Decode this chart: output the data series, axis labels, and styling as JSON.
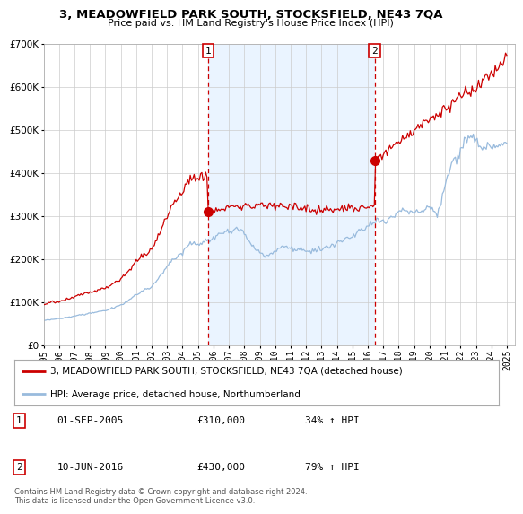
{
  "title": "3, MEADOWFIELD PARK SOUTH, STOCKSFIELD, NE43 7QA",
  "subtitle": "Price paid vs. HM Land Registry's House Price Index (HPI)",
  "legend_line1": "3, MEADOWFIELD PARK SOUTH, STOCKSFIELD, NE43 7QA (detached house)",
  "legend_line2": "HPI: Average price, detached house, Northumberland",
  "sale1_date": "01-SEP-2005",
  "sale1_price": "£310,000",
  "sale1_hpi": "34% ↑ HPI",
  "sale1_year": 2005.67,
  "sale1_value": 310000,
  "sale2_date": "10-JUN-2016",
  "sale2_price": "£430,000",
  "sale2_hpi": "79% ↑ HPI",
  "sale2_year": 2016.44,
  "sale2_value": 430000,
  "red_line_color": "#cc0000",
  "blue_line_color": "#99bbdd",
  "shade_color": "#ddeeff",
  "marker_box_color": "#cc0000",
  "grid_color": "#cccccc",
  "background_color": "#ffffff",
  "ylim": [
    0,
    700000
  ],
  "xlim": [
    1995,
    2025.5
  ],
  "footer": "Contains HM Land Registry data © Crown copyright and database right 2024.\nThis data is licensed under the Open Government Licence v3.0.",
  "hpi_x": [
    1995.0,
    1995.08,
    1995.17,
    1995.25,
    1995.33,
    1995.42,
    1995.5,
    1995.58,
    1995.67,
    1995.75,
    1995.83,
    1995.92,
    1996.0,
    1996.08,
    1996.17,
    1996.25,
    1996.33,
    1996.42,
    1996.5,
    1996.58,
    1996.67,
    1996.75,
    1996.83,
    1996.92,
    1997.0,
    1997.08,
    1997.17,
    1997.25,
    1997.33,
    1997.42,
    1997.5,
    1997.58,
    1997.67,
    1997.75,
    1997.83,
    1997.92,
    1998.0,
    1998.08,
    1998.17,
    1998.25,
    1998.33,
    1998.42,
    1998.5,
    1998.58,
    1998.67,
    1998.75,
    1998.83,
    1998.92,
    1999.0,
    1999.08,
    1999.17,
    1999.25,
    1999.33,
    1999.42,
    1999.5,
    1999.58,
    1999.67,
    1999.75,
    1999.83,
    1999.92,
    2000.0,
    2000.08,
    2000.17,
    2000.25,
    2000.33,
    2000.42,
    2000.5,
    2000.58,
    2000.67,
    2000.75,
    2000.83,
    2000.92,
    2001.0,
    2001.08,
    2001.17,
    2001.25,
    2001.33,
    2001.42,
    2001.5,
    2001.58,
    2001.67,
    2001.75,
    2001.83,
    2001.92,
    2002.0,
    2002.08,
    2002.17,
    2002.25,
    2002.33,
    2002.42,
    2002.5,
    2002.58,
    2002.67,
    2002.75,
    2002.83,
    2002.92,
    2003.0,
    2003.08,
    2003.17,
    2003.25,
    2003.33,
    2003.42,
    2003.5,
    2003.58,
    2003.67,
    2003.75,
    2003.83,
    2003.92,
    2004.0,
    2004.08,
    2004.17,
    2004.25,
    2004.33,
    2004.42,
    2004.5,
    2004.58,
    2004.67,
    2004.75,
    2004.83,
    2004.92,
    2005.0,
    2005.08,
    2005.17,
    2005.25,
    2005.33,
    2005.42,
    2005.5,
    2005.58,
    2005.67,
    2005.75,
    2005.83,
    2005.92,
    2006.0,
    2006.08,
    2006.17,
    2006.25,
    2006.33,
    2006.42,
    2006.5,
    2006.58,
    2006.67,
    2006.75,
    2006.83,
    2006.92,
    2007.0,
    2007.08,
    2007.17,
    2007.25,
    2007.33,
    2007.42,
    2007.5,
    2007.58,
    2007.67,
    2007.75,
    2007.83,
    2007.92,
    2008.0,
    2008.08,
    2008.17,
    2008.25,
    2008.33,
    2008.42,
    2008.5,
    2008.58,
    2008.67,
    2008.75,
    2008.83,
    2008.92,
    2009.0,
    2009.08,
    2009.17,
    2009.25,
    2009.33,
    2009.42,
    2009.5,
    2009.58,
    2009.67,
    2009.75,
    2009.83,
    2009.92,
    2010.0,
    2010.08,
    2010.17,
    2010.25,
    2010.33,
    2010.42,
    2010.5,
    2010.58,
    2010.67,
    2010.75,
    2010.83,
    2010.92,
    2011.0,
    2011.08,
    2011.17,
    2011.25,
    2011.33,
    2011.42,
    2011.5,
    2011.58,
    2011.67,
    2011.75,
    2011.83,
    2011.92,
    2012.0,
    2012.08,
    2012.17,
    2012.25,
    2012.33,
    2012.42,
    2012.5,
    2012.58,
    2012.67,
    2012.75,
    2012.83,
    2012.92,
    2013.0,
    2013.08,
    2013.17,
    2013.25,
    2013.33,
    2013.42,
    2013.5,
    2013.58,
    2013.67,
    2013.75,
    2013.83,
    2013.92,
    2014.0,
    2014.08,
    2014.17,
    2014.25,
    2014.33,
    2014.42,
    2014.5,
    2014.58,
    2014.67,
    2014.75,
    2014.83,
    2014.92,
    2015.0,
    2015.08,
    2015.17,
    2015.25,
    2015.33,
    2015.42,
    2015.5,
    2015.58,
    2015.67,
    2015.75,
    2015.83,
    2015.92,
    2016.0,
    2016.08,
    2016.17,
    2016.25,
    2016.33,
    2016.42,
    2016.5,
    2016.58,
    2016.67,
    2016.75,
    2016.83,
    2016.92,
    2017.0,
    2017.08,
    2017.17,
    2017.25,
    2017.33,
    2017.42,
    2017.5,
    2017.58,
    2017.67,
    2017.75,
    2017.83,
    2017.92,
    2018.0,
    2018.08,
    2018.17,
    2018.25,
    2018.33,
    2018.42,
    2018.5,
    2018.58,
    2018.67,
    2018.75,
    2018.83,
    2018.92,
    2019.0,
    2019.08,
    2019.17,
    2019.25,
    2019.33,
    2019.42,
    2019.5,
    2019.58,
    2019.67,
    2019.75,
    2019.83,
    2019.92,
    2020.0,
    2020.08,
    2020.17,
    2020.25,
    2020.33,
    2020.42,
    2020.5,
    2020.58,
    2020.67,
    2020.75,
    2020.83,
    2020.92,
    2021.0,
    2021.08,
    2021.17,
    2021.25,
    2021.33,
    2021.42,
    2021.5,
    2021.58,
    2021.67,
    2021.75,
    2021.83,
    2021.92,
    2022.0,
    2022.08,
    2022.17,
    2022.25,
    2022.33,
    2022.42,
    2022.5,
    2022.58,
    2022.67,
    2022.75,
    2022.83,
    2022.92,
    2023.0,
    2023.08,
    2023.17,
    2023.25,
    2023.33,
    2023.42,
    2023.5,
    2023.58,
    2023.67,
    2023.75,
    2023.83,
    2023.92,
    2024.0,
    2024.08,
    2024.17,
    2024.25,
    2024.33,
    2024.42,
    2024.5,
    2024.58,
    2024.67,
    2024.75,
    2024.83,
    2024.92,
    2025.0
  ],
  "hpi_base": [
    58000,
    58500,
    59000,
    59500,
    59800,
    60200,
    60500,
    60800,
    61000,
    61200,
    61500,
    61800,
    62000,
    62500,
    63000,
    63500,
    64000,
    64500,
    65000,
    65500,
    66000,
    66500,
    67000,
    67500,
    68000,
    68800,
    69500,
    70200,
    71000,
    71500,
    72000,
    72500,
    73000,
    73500,
    74000,
    74500,
    75000,
    75500,
    76000,
    76500,
    77000,
    77500,
    78000,
    78500,
    79000,
    79500,
    80000,
    80500,
    81000,
    82000,
    83000,
    84000,
    85000,
    86000,
    87000,
    88000,
    89000,
    90000,
    91000,
    92000,
    93000,
    95000,
    97000,
    99000,
    101000,
    103000,
    105000,
    107000,
    109000,
    111000,
    113000,
    115000,
    117000,
    119000,
    121000,
    123000,
    125000,
    127000,
    129000,
    131000,
    132000,
    133000,
    134000,
    135000,
    137000,
    140000,
    143000,
    146000,
    150000,
    154000,
    158000,
    162000,
    166000,
    170000,
    174000,
    178000,
    182000,
    186000,
    190000,
    194000,
    197000,
    200000,
    202000,
    204000,
    206000,
    208000,
    210000,
    212000,
    215000,
    220000,
    225000,
    229000,
    232000,
    234000,
    236000,
    237000,
    238000,
    237000,
    236000,
    235000,
    235000,
    236000,
    237000,
    238000,
    239000,
    240000,
    241000,
    242000,
    243000,
    244000,
    245000,
    246000,
    248000,
    250000,
    252000,
    254000,
    256000,
    258000,
    260000,
    262000,
    264000,
    265000,
    265000,
    264000,
    263000,
    264000,
    265000,
    267000,
    268000,
    269000,
    270000,
    270000,
    269000,
    268000,
    267000,
    265000,
    260000,
    254000,
    248000,
    243000,
    238000,
    234000,
    230000,
    227000,
    224000,
    222000,
    220000,
    218000,
    215000,
    213000,
    211000,
    210000,
    209000,
    209000,
    209000,
    210000,
    211000,
    213000,
    215000,
    217000,
    220000,
    222000,
    224000,
    226000,
    228000,
    229000,
    230000,
    230000,
    229000,
    228000,
    227000,
    226000,
    225000,
    224000,
    223000,
    222000,
    221000,
    221000,
    221000,
    222000,
    222000,
    222000,
    222000,
    221000,
    220000,
    219000,
    219000,
    219000,
    219000,
    219000,
    219000,
    220000,
    220000,
    221000,
    222000,
    223000,
    224000,
    225000,
    226000,
    227000,
    228000,
    229000,
    230000,
    231000,
    232000,
    233000,
    234000,
    235000,
    236000,
    238000,
    240000,
    242000,
    244000,
    246000,
    248000,
    249000,
    250000,
    251000,
    252000,
    253000,
    255000,
    257000,
    259000,
    261000,
    263000,
    265000,
    267000,
    268000,
    269000,
    270000,
    271000,
    272000,
    274000,
    276000,
    278000,
    280000,
    282000,
    284000,
    286000,
    288000,
    289000,
    290000,
    290000,
    289000,
    289000,
    290000,
    291000,
    293000,
    295000,
    297000,
    299000,
    301000,
    303000,
    305000,
    306000,
    307000,
    308000,
    310000,
    312000,
    314000,
    315000,
    315000,
    315000,
    314000,
    313000,
    312000,
    311000,
    310000,
    309000,
    309000,
    309000,
    310000,
    311000,
    312000,
    313000,
    314000,
    315000,
    316000,
    317000,
    318000,
    318000,
    318000,
    318000,
    316000,
    310000,
    305000,
    300000,
    310000,
    320000,
    335000,
    350000,
    360000,
    370000,
    382000,
    394000,
    406000,
    415000,
    420000,
    422000,
    425000,
    428000,
    432000,
    438000,
    444000,
    450000,
    458000,
    465000,
    472000,
    478000,
    482000,
    485000,
    486000,
    486000,
    485000,
    483000,
    480000,
    476000,
    471000,
    466000,
    462000,
    459000,
    458000,
    458000,
    459000,
    461000,
    462000,
    463000,
    463000,
    462000,
    461000,
    460000,
    460000,
    461000,
    462000,
    463000,
    464000,
    465000,
    466000,
    467000,
    468000,
    470000
  ]
}
